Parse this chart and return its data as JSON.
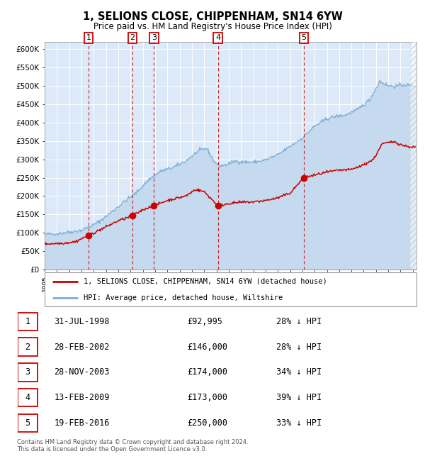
{
  "title": "1, SELIONS CLOSE, CHIPPENHAM, SN14 6YW",
  "subtitle": "Price paid vs. HM Land Registry's House Price Index (HPI)",
  "xlim": [
    1995.0,
    2025.3
  ],
  "ylim": [
    0,
    620000
  ],
  "yticks": [
    0,
    50000,
    100000,
    150000,
    200000,
    250000,
    300000,
    350000,
    400000,
    450000,
    500000,
    550000,
    600000
  ],
  "ytick_labels": [
    "£0",
    "£50K",
    "£100K",
    "£150K",
    "£200K",
    "£250K",
    "£300K",
    "£350K",
    "£400K",
    "£450K",
    "£500K",
    "£550K",
    "£600K"
  ],
  "bg_color": "#dce9f8",
  "grid_color": "#ffffff",
  "hpi_line_color": "#7aafd4",
  "hpi_fill_color": "#c5d9ef",
  "price_line_color": "#cc0000",
  "sale_marker_color": "#cc0000",
  "dashed_line_color": "#cc0000",
  "number_box_color": "#cc0000",
  "sales": [
    {
      "num": 1,
      "year": 1998.58,
      "price": 92995
    },
    {
      "num": 2,
      "year": 2002.16,
      "price": 146000
    },
    {
      "num": 3,
      "year": 2003.91,
      "price": 174000
    },
    {
      "num": 4,
      "year": 2009.12,
      "price": 173000
    },
    {
      "num": 5,
      "year": 2016.12,
      "price": 250000
    }
  ],
  "legend_entries": [
    {
      "label": "1, SELIONS CLOSE, CHIPPENHAM, SN14 6YW (detached house)",
      "color": "#cc0000"
    },
    {
      "label": "HPI: Average price, detached house, Wiltshire",
      "color": "#7aafd4"
    }
  ],
  "footer": "Contains HM Land Registry data © Crown copyright and database right 2024.\nThis data is licensed under the Open Government Licence v3.0.",
  "table_rows": [
    [
      "1",
      "31-JUL-1998",
      "£92,995",
      "28% ↓ HPI"
    ],
    [
      "2",
      "28-FEB-2002",
      "£146,000",
      "28% ↓ HPI"
    ],
    [
      "3",
      "28-NOV-2003",
      "£174,000",
      "34% ↓ HPI"
    ],
    [
      "4",
      "13-FEB-2009",
      "£173,000",
      "39% ↓ HPI"
    ],
    [
      "5",
      "19-FEB-2016",
      "£250,000",
      "33% ↓ HPI"
    ]
  ]
}
